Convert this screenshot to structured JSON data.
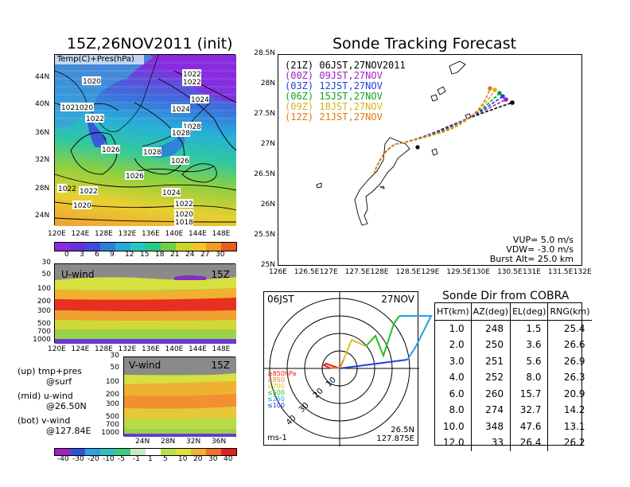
{
  "left_top": {
    "title": "15Z,26NOV2011 (init)",
    "field_label": "Temp(C)+Pres(hPa)",
    "lat_ticks": [
      "44N",
      "40N",
      "36N",
      "32N",
      "28N",
      "24N"
    ],
    "lon_ticks": [
      "120E",
      "124E",
      "128E",
      "132E",
      "136E",
      "140E",
      "144E",
      "148E"
    ],
    "pressure_labels": [
      "1020",
      "1022",
      "1022",
      "1024",
      "1021020",
      "1024",
      "1028",
      "1026",
      "1028",
      "1022",
      "1022",
      "1024",
      "1026",
      "1026",
      "1022",
      "1020",
      "1022",
      "1020",
      "1018",
      "1028"
    ],
    "colorbar_ticks": [
      "0",
      "3",
      "6",
      "9",
      "12",
      "15",
      "18",
      "21",
      "24",
      "27",
      "30"
    ],
    "colorbar_colors": [
      "#8a2be2",
      "#6a2fd8",
      "#3d4bdc",
      "#2e7ed8",
      "#26a9d8",
      "#21c8c0",
      "#29c987",
      "#6ecf45",
      "#c6d62c",
      "#f0c42a",
      "#f39a22",
      "#ea5b1f"
    ]
  },
  "left_mid": {
    "label": "U-wind",
    "time": "15Z",
    "y_ticks": [
      "30",
      "50",
      "100",
      "200",
      "300",
      "500",
      "700",
      "1000"
    ],
    "x_ticks": [
      "120E",
      "124E",
      "128E",
      "132E",
      "136E",
      "140E",
      "144E",
      "148E"
    ]
  },
  "left_bot": {
    "label": "V-wind",
    "time": "15Z",
    "y_ticks": [
      "30",
      "50",
      "100",
      "200",
      "300",
      "500",
      "700",
      "1000"
    ],
    "x_ticks": [
      "24N",
      "28N",
      "32N",
      "36N"
    ],
    "colorbar_ticks": [
      "-40",
      "-30",
      "-20",
      "-10",
      "-5",
      "-1",
      "1",
      "5",
      "10",
      "20",
      "30",
      "40"
    ],
    "notes": [
      "(up) tmp+pres",
      "@surf",
      "(mid) u-wind",
      "@26.50N",
      "(bot) v-wind",
      "@127.84E"
    ]
  },
  "tracking": {
    "title": "Sonde Tracking Forecast",
    "lat_ticks": [
      "28.5N",
      "28N",
      "27.5N",
      "27N",
      "26.5N",
      "26N",
      "25.5N",
      "25N"
    ],
    "lon_ticks": [
      "126E",
      "126.5E",
      "127E",
      "127.5E",
      "128E",
      "128.5E",
      "129E",
      "129.5E",
      "130E",
      "130.5E",
      "131E",
      "131.5E",
      "132E"
    ],
    "legend": [
      {
        "text": "(21Z) 06JST,27NOV2011",
        "color": "#000000"
      },
      {
        "text": "(00Z) 09JST,27NOV",
        "color": "#a020c0"
      },
      {
        "text": "(03Z) 12JST,27NOV",
        "color": "#2040e0"
      },
      {
        "text": "(06Z) 15JST,27NOV",
        "color": "#10a020"
      },
      {
        "text": "(09Z) 18JST,27NOV",
        "color": "#d8b020"
      },
      {
        "text": "(12Z) 21JST,27NOV",
        "color": "#e07810"
      }
    ],
    "params": [
      "VUP=  5.0  m/s",
      "VDW= -3.0  m/s",
      "Burst Alt= 25.0 km"
    ]
  },
  "polar": {
    "left_label": "06JST",
    "right_label": "27NOV",
    "unit": "ms-1",
    "loc_lat": "26.5N",
    "loc_lon": "127.875E",
    "ring_labels": [
      "10",
      "20",
      "30",
      "40"
    ],
    "legend": [
      {
        "text": "≥850hPa",
        "color": "#e02020"
      },
      {
        "text": "≥850",
        "color": "#f08020"
      },
      {
        "text": "≥700",
        "color": "#e0c020"
      },
      {
        "text": "≤500",
        "color": "#20c020"
      },
      {
        "text": "≤250",
        "color": "#20a0e0"
      },
      {
        "text": "≤100",
        "color": "#2040e0"
      }
    ]
  },
  "sonde_table": {
    "title": "Sonde Dir from COBRA",
    "headers": [
      "HT(km)",
      "AZ(deg)",
      "EL(deg)",
      "RNG(km)"
    ],
    "rows": [
      [
        "1.0",
        "248",
        "1.5",
        "25.4"
      ],
      [
        "2.0",
        "250",
        "3.6",
        "26.6"
      ],
      [
        "3.0",
        "251",
        "5.6",
        "26.9"
      ],
      [
        "4.0",
        "252",
        "8.0",
        "26.3"
      ],
      [
        "6.0",
        "260",
        "15.7",
        "20.9"
      ],
      [
        "8.0",
        "274",
        "32.7",
        "14.2"
      ],
      [
        "10.0",
        "348",
        "47.6",
        "13.1"
      ],
      [
        "12.0",
        "33",
        "26.4",
        "26.2"
      ]
    ]
  }
}
